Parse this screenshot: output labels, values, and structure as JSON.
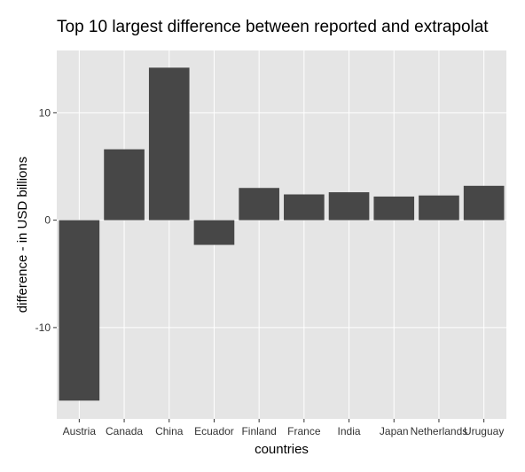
{
  "chart_data": {
    "type": "bar",
    "title": "Top 10 largest difference between reported and extrapolat",
    "xlabel": "countries",
    "ylabel": "difference - in USD billions",
    "categories": [
      "Austria",
      "Canada",
      "China",
      "Ecuador",
      "Finland",
      "France",
      "India",
      "Japan",
      "Netherlands",
      "Uruguay"
    ],
    "values": [
      -16.8,
      6.6,
      14.2,
      -2.3,
      3.0,
      2.4,
      2.6,
      2.2,
      2.3,
      3.2
    ],
    "ylim": [
      -18.5,
      15.8
    ],
    "yticks": [
      -10,
      0,
      10
    ],
    "ytick_labels": [
      "-10",
      "0",
      "10"
    ],
    "grid": true,
    "colors": {
      "bar": "#474747",
      "panel": "#e5e5e5",
      "grid": "#ffffff",
      "text": "#000000",
      "tick_text": "#333333"
    }
  }
}
